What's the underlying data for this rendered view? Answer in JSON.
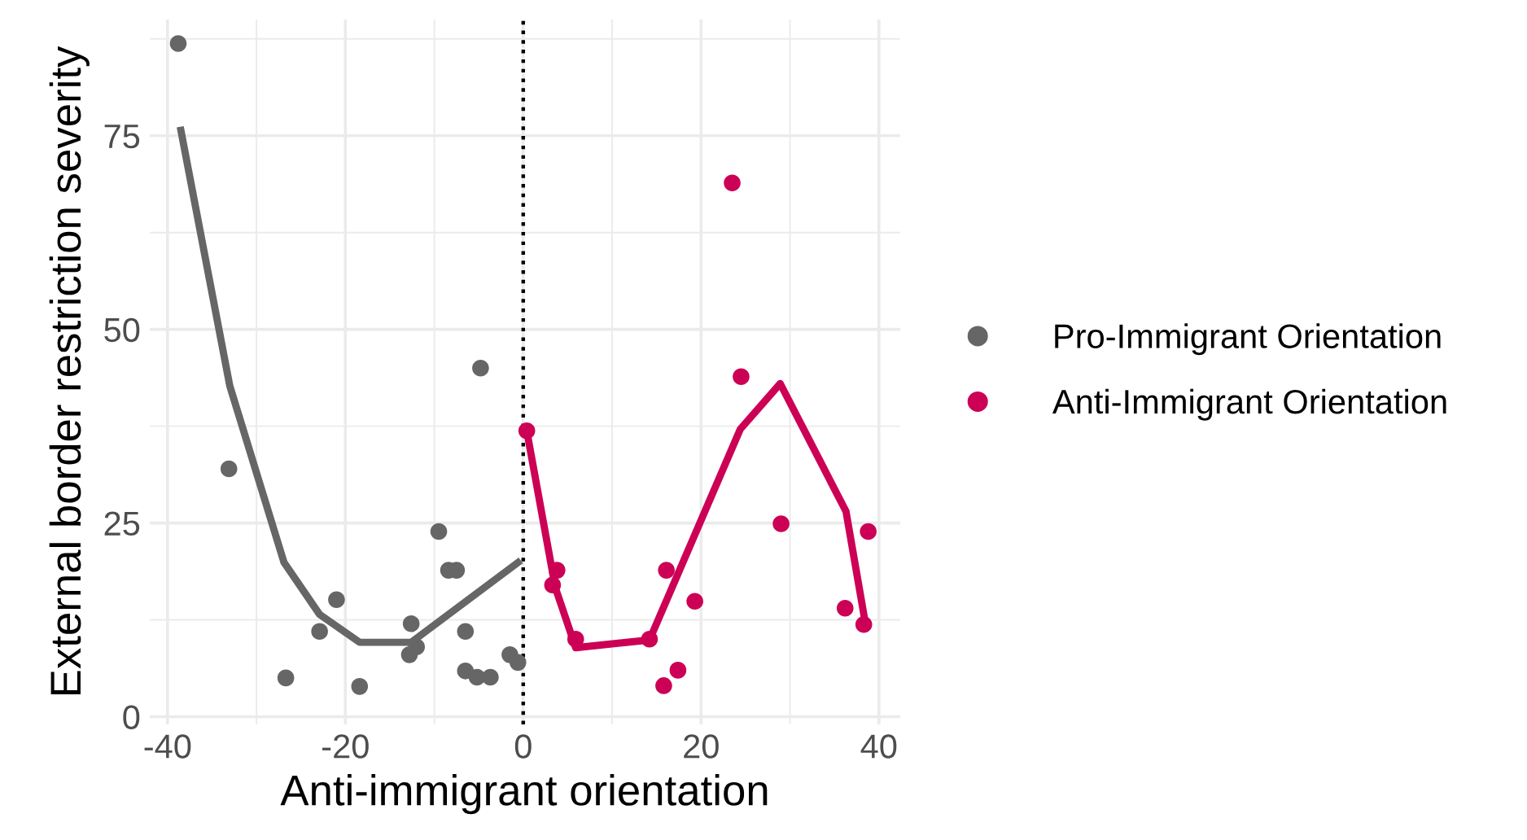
{
  "chart_data": {
    "type": "scatter",
    "xlabel": "Anti-immigrant orientation",
    "ylabel": "External border restriction severity",
    "xlim": [
      -42,
      42.4
    ],
    "ylim": [
      -1,
      90
    ],
    "xticks": [
      -40,
      -20,
      0,
      20,
      40
    ],
    "yticks": [
      0,
      25,
      50,
      75
    ],
    "grid": true,
    "legend": "right",
    "marker": "circle",
    "ref_lines": [
      {
        "axis": "x",
        "value": 0,
        "color": "#000000",
        "line_style": "dotted"
      }
    ],
    "series": [
      {
        "name": "Pro-Immigrant Orientation",
        "color": "#666666",
        "x": [
          -38.8,
          -33.1,
          -26.7,
          -22.9,
          -21.0,
          -18.4,
          -12.6,
          -12.0,
          -12.8,
          -9.5,
          -8.4,
          -7.5,
          -6.5,
          -6.5,
          -4.8,
          -5.2,
          -3.7,
          -1.5,
          -0.6
        ],
        "values": [
          86.9,
          32.0,
          5.0,
          11.0,
          15.1,
          3.9,
          12.0,
          9.0,
          8.0,
          23.9,
          18.9,
          18.9,
          11.0,
          5.9,
          45.0,
          5.1,
          5.1,
          8.0,
          7.0
        ]
      },
      {
        "name": "Anti-Immigrant Orientation",
        "color": "#cc0055",
        "x": [
          0.4,
          3.8,
          3.3,
          5.9,
          14.2,
          16.1,
          15.8,
          17.4,
          19.3,
          23.5,
          24.5,
          29.0,
          36.2,
          38.3,
          38.8
        ],
        "values": [
          36.9,
          18.9,
          17.0,
          10.0,
          10.0,
          18.9,
          4.0,
          6.0,
          14.9,
          68.9,
          43.9,
          24.9,
          14.0,
          11.9,
          23.9
        ]
      },
      {
        "type": "line",
        "marker": "none",
        "color": "#666666",
        "x": [
          -38.5,
          -33.0,
          -26.9,
          -22.9,
          -18.4,
          -12.6,
          -0.6
        ],
        "values": [
          75.7,
          42.7,
          19.9,
          13.2,
          9.6,
          9.6,
          19.9
        ]
      },
      {
        "type": "line",
        "marker": "none",
        "color": "#cc0055",
        "x": [
          0.4,
          3.6,
          5.9,
          14.2,
          24.4,
          28.9,
          36.3,
          38.5
        ],
        "values": [
          36.9,
          16.7,
          8.9,
          9.9,
          37.1,
          43.0,
          26.5,
          11.9
        ]
      }
    ]
  }
}
